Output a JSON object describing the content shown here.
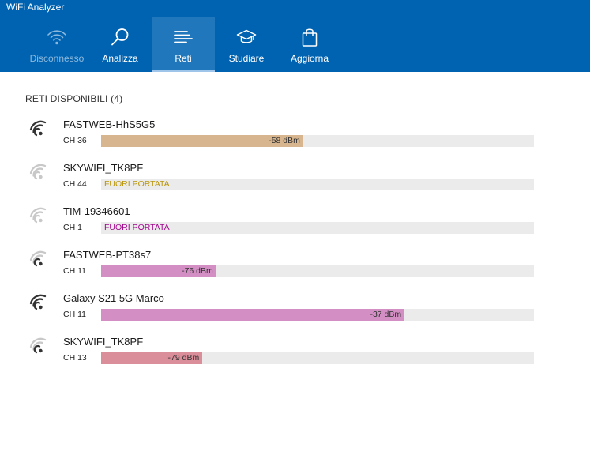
{
  "app": {
    "title": "WiFi Analyzer"
  },
  "nav": {
    "tabs": [
      {
        "label": "Disconnesso",
        "icon": "wifi-icon",
        "active": false,
        "disabled": true
      },
      {
        "label": "Analizza",
        "icon": "magnifier-icon",
        "active": false,
        "disabled": false
      },
      {
        "label": "Reti",
        "icon": "list-icon",
        "active": true,
        "disabled": false
      },
      {
        "label": "Studiare",
        "icon": "graduation-cap-icon",
        "active": false,
        "disabled": false
      },
      {
        "label": "Aggiorna",
        "icon": "shopping-bag-icon",
        "active": false,
        "disabled": false
      }
    ]
  },
  "networks": {
    "title": "RETI DISPONIBILI (4)",
    "items": [
      {
        "ssid": "FASTWEB-HhS5G5",
        "channel": "CH 36",
        "signal_text": "-58 dBm",
        "signal_fraction": 0.467,
        "in_range": true,
        "bar_color": "#d7b58f",
        "strength": 3
      },
      {
        "ssid": "SKYWIFI_TK8PF",
        "channel": "CH 44",
        "signal_text": "FUORI PORTATA",
        "signal_fraction": 0,
        "in_range": false,
        "text_color": "#b9960a",
        "strength": 0
      },
      {
        "ssid": "TIM-19346601",
        "channel": "CH 1",
        "signal_text": "FUORI PORTATA",
        "signal_fraction": 0,
        "in_range": false,
        "text_color": "#a3088f",
        "strength": 0
      },
      {
        "ssid": "FASTWEB-PT38s7",
        "channel": "CH 11",
        "signal_text": "-76 dBm",
        "signal_fraction": 0.266,
        "in_range": true,
        "bar_color": "#d38fc4",
        "strength": 1
      },
      {
        "ssid": "Galaxy S21 5G Marco",
        "channel": "CH 11",
        "signal_text": "-37 dBm",
        "signal_fraction": 0.701,
        "in_range": true,
        "bar_color": "#d38fc4",
        "strength": 3
      },
      {
        "ssid": "SKYWIFI_TK8PF",
        "channel": "CH 13",
        "signal_text": "-79 dBm",
        "signal_fraction": 0.234,
        "in_range": true,
        "bar_color": "#d98e9a",
        "strength": 1
      }
    ]
  },
  "colors": {
    "header": "#0063b1",
    "track": "#ebebeb",
    "icon_active": "#333333",
    "icon_inactive": "#c8c8c8"
  }
}
